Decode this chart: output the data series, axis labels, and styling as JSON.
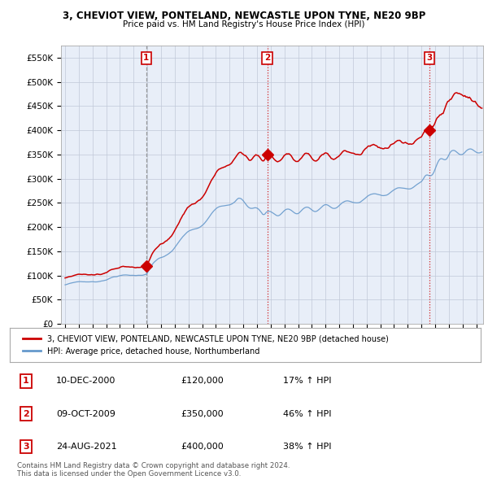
{
  "title": "3, CHEVIOT VIEW, PONTELAND, NEWCASTLE UPON TYNE, NE20 9BP",
  "subtitle": "Price paid vs. HM Land Registry's House Price Index (HPI)",
  "sale_dates": [
    "2000-12-10",
    "2009-10-09",
    "2021-08-24"
  ],
  "sale_prices": [
    120000,
    350000,
    400000
  ],
  "sale_labels": [
    "1",
    "2",
    "3"
  ],
  "sale_pct": [
    "17% ↑ HPI",
    "46% ↑ HPI",
    "38% ↑ HPI"
  ],
  "sale_date_labels": [
    "10-DEC-2000",
    "09-OCT-2009",
    "24-AUG-2021"
  ],
  "sale_prices_fmt": [
    "£120,000",
    "£350,000",
    "£400,000"
  ],
  "price_color": "#cc0000",
  "hpi_color": "#6699cc",
  "vline_color_1": "#888888",
  "vline_color_23": "#cc0000",
  "ylim": [
    0,
    575000
  ],
  "yticks": [
    0,
    50000,
    100000,
    150000,
    200000,
    250000,
    300000,
    350000,
    400000,
    450000,
    500000,
    550000
  ],
  "legend_label_price": "3, CHEVIOT VIEW, PONTELAND, NEWCASTLE UPON TYNE, NE20 9BP (detached house)",
  "legend_label_hpi": "HPI: Average price, detached house, Northumberland",
  "footer": "Contains HM Land Registry data © Crown copyright and database right 2024.\nThis data is licensed under the Open Government Licence v3.0.",
  "background_color": "#dde8f5",
  "background_color_pre": "#ffffff",
  "chart_bg": "#e8eef8"
}
